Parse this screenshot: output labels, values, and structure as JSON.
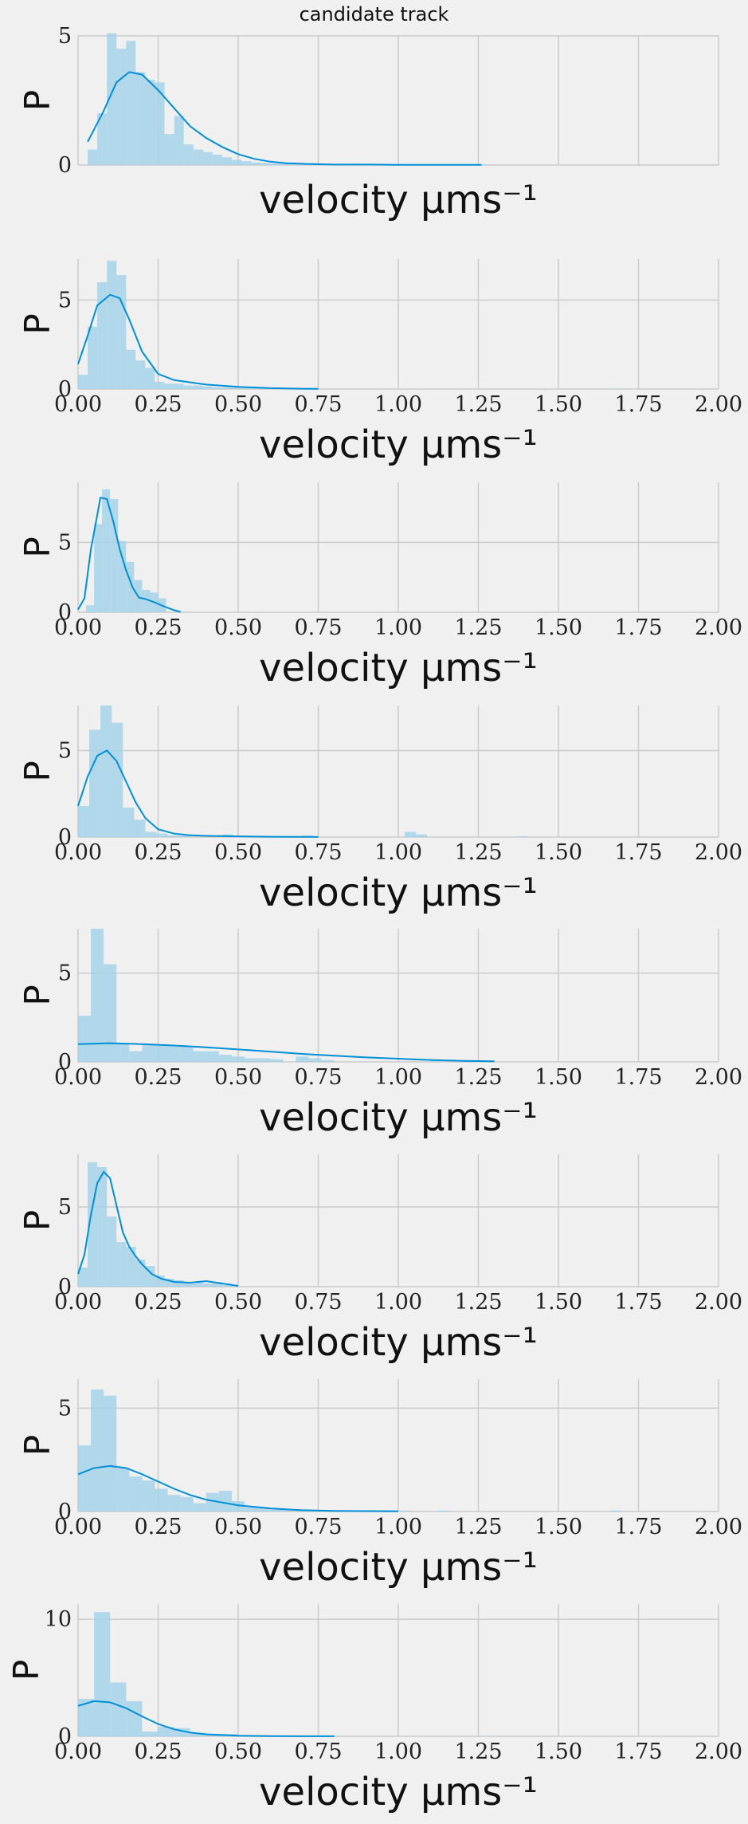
{
  "figure": {
    "title": "candidate track"
  },
  "style": {
    "background": "#f0f0f0",
    "grid": "#cbcbcb",
    "hist": "#a6d2ea",
    "kde": "#008fd5"
  },
  "chart_data": [
    {
      "type": "bar",
      "subtype": "histogram+kde",
      "title": "candidate track",
      "xlabel": "velocity μms⁻¹",
      "ylabel": "P",
      "xlim": [
        0,
        2
      ],
      "ylim": [
        0,
        5.0
      ],
      "xticks": [],
      "yticks": [
        0,
        5
      ],
      "grid": true,
      "hist": {
        "bin_width": 0.03,
        "x": [
          0.03,
          0.06,
          0.09,
          0.12,
          0.15,
          0.18,
          0.21,
          0.24,
          0.27,
          0.3,
          0.33,
          0.36,
          0.39,
          0.42,
          0.45,
          0.48,
          0.51,
          0.54,
          0.57,
          0.6,
          0.63,
          0.66,
          0.69,
          0.72,
          0.75,
          0.8,
          0.84,
          0.87,
          1.2,
          1.23,
          1.26
        ],
        "values": [
          0.6,
          2.0,
          5.1,
          4.5,
          4.8,
          3.6,
          3.3,
          3.2,
          1.2,
          1.9,
          0.8,
          0.6,
          0.5,
          0.4,
          0.3,
          0.2,
          0.15,
          0.1,
          0.08,
          0.06,
          0.05,
          0.04,
          0.03,
          0.03,
          0.02,
          0.02,
          0.05,
          0.03,
          0.02,
          0.03,
          0.02
        ]
      },
      "kde": {
        "x": [
          0.03,
          0.08,
          0.12,
          0.16,
          0.2,
          0.25,
          0.3,
          0.35,
          0.4,
          0.45,
          0.5,
          0.55,
          0.6,
          0.65,
          0.7,
          0.75,
          0.8,
          0.9,
          1.0,
          1.26
        ],
        "y": [
          0.9,
          2.1,
          3.2,
          3.6,
          3.5,
          2.9,
          2.2,
          1.5,
          1.05,
          0.7,
          0.42,
          0.24,
          0.13,
          0.07,
          0.05,
          0.03,
          0.02,
          0.02,
          0.01,
          0.01
        ]
      }
    },
    {
      "type": "bar",
      "subtype": "histogram+kde",
      "xlabel": "velocity μms⁻¹",
      "ylabel": "P",
      "xlim": [
        0,
        2
      ],
      "ylim": [
        0,
        7.3
      ],
      "xticks": [
        "0.00",
        "0.25",
        "0.50",
        "0.75",
        "1.00",
        "1.25",
        "1.50",
        "1.75",
        "2.00"
      ],
      "yticks": [
        0,
        5
      ],
      "grid": true,
      "hist": {
        "bin_width": 0.03,
        "x": [
          0.0,
          0.03,
          0.06,
          0.09,
          0.12,
          0.15,
          0.18,
          0.21,
          0.24,
          0.27,
          0.3,
          0.33,
          0.36,
          0.39,
          0.42,
          0.45,
          0.48,
          0.51,
          0.54,
          0.57,
          0.6,
          1.65,
          1.68
        ],
        "values": [
          0.8,
          3.5,
          6.0,
          7.2,
          6.4,
          2.2,
          1.6,
          1.2,
          0.4,
          0.3,
          0.3,
          0.2,
          0.2,
          0.15,
          0.1,
          0.1,
          0.08,
          0.06,
          0.05,
          0.04,
          0.03,
          0.02,
          0.02
        ]
      },
      "kde": {
        "x": [
          0.0,
          0.03,
          0.06,
          0.1,
          0.13,
          0.16,
          0.2,
          0.25,
          0.3,
          0.4,
          0.5,
          0.6,
          0.7,
          0.75
        ],
        "y": [
          1.4,
          3.0,
          4.7,
          5.3,
          5.1,
          3.9,
          2.1,
          0.85,
          0.5,
          0.25,
          0.12,
          0.05,
          0.02,
          0.01
        ]
      }
    },
    {
      "type": "bar",
      "subtype": "histogram+kde",
      "xlabel": "velocity μms⁻¹",
      "ylabel": "P",
      "xlim": [
        0,
        2
      ],
      "ylim": [
        0,
        9.3
      ],
      "xticks": [
        "0.00",
        "0.25",
        "0.50",
        "0.75",
        "1.00",
        "1.25",
        "1.50",
        "1.75",
        "2.00"
      ],
      "yticks": [
        0,
        5
      ],
      "grid": true,
      "hist": {
        "bin_width": 0.025,
        "x": [
          0.025,
          0.05,
          0.075,
          0.1,
          0.125,
          0.15,
          0.175,
          0.2,
          0.225,
          0.25
        ],
        "values": [
          0.5,
          6.3,
          8.8,
          8.1,
          5.1,
          3.6,
          2.3,
          1.6,
          1.4,
          1.0
        ]
      },
      "kde": {
        "x": [
          0.0,
          0.02,
          0.04,
          0.07,
          0.09,
          0.11,
          0.13,
          0.15,
          0.17,
          0.19,
          0.21,
          0.24,
          0.27,
          0.3,
          0.32
        ],
        "y": [
          0.2,
          1.0,
          4.5,
          8.2,
          8.1,
          6.5,
          4.5,
          3.0,
          1.8,
          1.05,
          0.95,
          0.7,
          0.4,
          0.15,
          0.03
        ]
      }
    },
    {
      "type": "bar",
      "subtype": "histogram+kde",
      "xlabel": "velocity μms⁻¹",
      "ylabel": "P",
      "xlim": [
        0,
        2
      ],
      "ylim": [
        0,
        7.6
      ],
      "xticks": [
        "0.00",
        "0.25",
        "0.50",
        "0.75",
        "1.00",
        "1.25",
        "1.50",
        "1.75",
        "2.00"
      ],
      "yticks": [
        0,
        5
      ],
      "grid": true,
      "hist": {
        "bin_width": 0.035,
        "x": [
          0.0,
          0.035,
          0.07,
          0.105,
          0.14,
          0.175,
          0.21,
          0.245,
          0.28,
          0.315,
          0.45,
          0.7,
          1.02,
          1.055,
          1.37
        ],
        "values": [
          1.8,
          6.2,
          7.6,
          6.6,
          1.7,
          1.0,
          0.3,
          0.2,
          0.1,
          0.08,
          0.15,
          0.1,
          0.3,
          0.15,
          0.05
        ]
      },
      "kde": {
        "x": [
          0.0,
          0.03,
          0.06,
          0.09,
          0.12,
          0.15,
          0.18,
          0.21,
          0.25,
          0.3,
          0.35,
          0.4,
          0.5,
          0.6,
          0.7,
          0.75
        ],
        "y": [
          1.8,
          3.5,
          4.7,
          5.0,
          4.4,
          3.2,
          2.0,
          1.1,
          0.45,
          0.2,
          0.1,
          0.07,
          0.04,
          0.02,
          0.01,
          0.005
        ]
      }
    },
    {
      "type": "bar",
      "subtype": "histogram+kde",
      "xlabel": "velocity μms⁻¹",
      "ylabel": "P",
      "xlim": [
        0,
        2
      ],
      "ylim": [
        0,
        7.5
      ],
      "xticks": [
        "0.00",
        "0.25",
        "0.50",
        "0.75",
        "1.00",
        "1.25",
        "1.50",
        "1.75",
        "2.00"
      ],
      "yticks": [
        0,
        5
      ],
      "grid": true,
      "hist": {
        "bin_width": 0.04,
        "x": [
          0.0,
          0.04,
          0.08,
          0.12,
          0.16,
          0.2,
          0.24,
          0.28,
          0.32,
          0.36,
          0.4,
          0.44,
          0.48,
          0.52,
          0.56,
          0.6,
          0.68,
          0.72,
          0.76,
          1.1,
          1.2
        ],
        "values": [
          2.6,
          7.5,
          5.5,
          1.0,
          0.6,
          1.0,
          1.0,
          0.9,
          0.9,
          0.6,
          0.6,
          0.4,
          0.3,
          0.2,
          0.2,
          0.15,
          0.3,
          0.2,
          0.1,
          0.1,
          0.05
        ]
      },
      "kde": {
        "x": [
          0.0,
          0.1,
          0.2,
          0.3,
          0.4,
          0.5,
          0.6,
          0.7,
          0.8,
          0.9,
          1.0,
          1.1,
          1.2,
          1.3
        ],
        "y": [
          1.0,
          1.05,
          1.0,
          0.92,
          0.82,
          0.7,
          0.58,
          0.45,
          0.35,
          0.25,
          0.18,
          0.11,
          0.06,
          0.03
        ]
      }
    },
    {
      "type": "bar",
      "subtype": "histogram+kde",
      "xlabel": "velocity μms⁻¹",
      "ylabel": "P",
      "xlim": [
        0,
        2
      ],
      "ylim": [
        0,
        8.3
      ],
      "xticks": [
        "0.00",
        "0.25",
        "0.50",
        "0.75",
        "1.00",
        "1.25",
        "1.50",
        "1.75",
        "2.00"
      ],
      "yticks": [
        0,
        5
      ],
      "grid": true,
      "hist": {
        "bin_width": 0.03,
        "x": [
          0.0,
          0.03,
          0.06,
          0.09,
          0.12,
          0.15,
          0.18,
          0.21,
          0.24,
          0.27,
          0.3,
          0.33,
          0.36,
          0.39,
          0.42,
          0.45
        ],
        "values": [
          1.2,
          7.8,
          7.5,
          4.4,
          2.8,
          2.5,
          1.7,
          1.3,
          0.7,
          0.5,
          0.4,
          0.3,
          0.3,
          0.2,
          0.3,
          0.1
        ]
      },
      "kde": {
        "x": [
          0.0,
          0.02,
          0.04,
          0.06,
          0.08,
          0.1,
          0.12,
          0.14,
          0.16,
          0.18,
          0.2,
          0.23,
          0.26,
          0.3,
          0.35,
          0.4,
          0.45,
          0.5
        ],
        "y": [
          0.8,
          2.0,
          4.5,
          6.5,
          7.2,
          6.8,
          5.1,
          3.4,
          2.5,
          1.9,
          1.4,
          0.8,
          0.5,
          0.3,
          0.25,
          0.35,
          0.2,
          0.05
        ]
      }
    },
    {
      "type": "bar",
      "subtype": "histogram+kde",
      "xlabel": "velocity μms⁻¹",
      "ylabel": "P",
      "xlim": [
        0,
        2
      ],
      "ylim": [
        0,
        6.4
      ],
      "xticks": [
        "0.00",
        "0.25",
        "0.50",
        "0.75",
        "1.00",
        "1.25",
        "1.50",
        "1.75",
        "2.00"
      ],
      "yticks": [
        0,
        5
      ],
      "grid": true,
      "hist": {
        "bin_width": 0.04,
        "x": [
          0.0,
          0.04,
          0.08,
          0.12,
          0.16,
          0.2,
          0.24,
          0.28,
          0.32,
          0.36,
          0.4,
          0.44,
          0.48,
          0.52,
          0.56,
          0.6,
          0.64,
          0.68,
          0.72,
          0.76,
          0.88,
          0.92,
          0.96,
          1.0,
          1.12,
          1.66
        ],
        "values": [
          3.2,
          5.9,
          5.6,
          2.1,
          1.7,
          1.5,
          1.1,
          0.8,
          0.7,
          0.4,
          0.9,
          1.0,
          0.5,
          0.2,
          0.15,
          0.1,
          0.08,
          0.06,
          0.05,
          0.05,
          0.06,
          0.06,
          0.05,
          0.05,
          0.05,
          0.05
        ]
      },
      "kde": {
        "x": [
          0.0,
          0.05,
          0.1,
          0.15,
          0.2,
          0.25,
          0.3,
          0.35,
          0.4,
          0.5,
          0.6,
          0.7,
          0.8,
          0.9,
          1.0
        ],
        "y": [
          1.8,
          2.1,
          2.2,
          2.1,
          1.8,
          1.45,
          1.1,
          0.8,
          0.57,
          0.3,
          0.15,
          0.06,
          0.03,
          0.02,
          0.01
        ]
      }
    },
    {
      "type": "bar",
      "subtype": "histogram+kde",
      "xlabel": "velocity μms⁻¹",
      "ylabel": "P",
      "xlim": [
        0,
        2
      ],
      "ylim": [
        0,
        11.3
      ],
      "xticks": [
        "0.00",
        "0.25",
        "0.50",
        "0.75",
        "1.00",
        "1.25",
        "1.50",
        "1.75",
        "2.00"
      ],
      "yticks": [
        0,
        10
      ],
      "grid": true,
      "hist": {
        "bin_width": 0.05,
        "x": [
          0.0,
          0.05,
          0.1,
          0.15,
          0.2,
          0.25,
          0.3,
          0.35,
          0.4,
          0.45,
          0.5,
          0.55,
          0.6,
          0.65,
          0.7,
          0.75,
          0.8,
          1.25
        ],
        "values": [
          3.2,
          10.6,
          4.6,
          3.0,
          0.4,
          0.8,
          0.7,
          0.3,
          0.2,
          0.2,
          0.1,
          0.08,
          0.06,
          0.04,
          0.03,
          0.03,
          0.02,
          0.02
        ]
      },
      "kde": {
        "x": [
          0.0,
          0.05,
          0.1,
          0.15,
          0.2,
          0.25,
          0.3,
          0.35,
          0.4,
          0.5,
          0.6,
          0.7,
          0.8
        ],
        "y": [
          2.6,
          3.0,
          2.9,
          2.4,
          1.7,
          1.05,
          0.6,
          0.32,
          0.17,
          0.05,
          0.02,
          0.01,
          0.005
        ]
      }
    }
  ]
}
